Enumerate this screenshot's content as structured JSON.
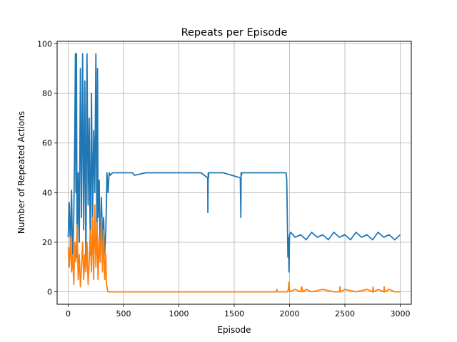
{
  "chart_data": {
    "type": "line",
    "title": "Repeats per Episode",
    "xlabel": "Episode",
    "ylabel": "Number of Repeated Actions",
    "xlim": [
      -100,
      3100
    ],
    "ylim": [
      -5,
      101
    ],
    "xticks": [
      0,
      500,
      1000,
      1500,
      2000,
      2500,
      3000
    ],
    "yticks": [
      0,
      20,
      40,
      60,
      80,
      100
    ],
    "xtick_labels": [
      "0",
      "500",
      "1000",
      "1500",
      "2000",
      "2500",
      "3000"
    ],
    "ytick_labels": [
      "0",
      "20",
      "40",
      "60",
      "80",
      "100"
    ],
    "grid": true,
    "legend": false,
    "series": [
      {
        "color": "#1f77b4",
        "x": [
          0,
          10,
          20,
          30,
          40,
          50,
          60,
          65,
          70,
          75,
          80,
          90,
          100,
          110,
          120,
          130,
          140,
          150,
          160,
          170,
          180,
          190,
          200,
          210,
          220,
          230,
          240,
          250,
          260,
          265,
          270,
          280,
          290,
          300,
          310,
          320,
          330,
          340,
          345,
          350,
          360,
          370,
          380,
          400,
          500,
          580,
          600,
          700,
          800,
          900,
          1000,
          1100,
          1200,
          1260,
          1262,
          1265,
          1268,
          1270,
          1400,
          1555,
          1560,
          1562,
          1565,
          1570,
          1700,
          1800,
          1900,
          1970,
          1975,
          1980,
          1985,
          1990,
          1995,
          2000,
          2010,
          2050,
          2100,
          2150,
          2200,
          2250,
          2300,
          2350,
          2400,
          2450,
          2500,
          2550,
          2600,
          2650,
          2700,
          2750,
          2800,
          2850,
          2900,
          2950,
          3000
        ],
        "y": [
          22,
          36,
          18,
          41,
          12,
          30,
          66,
          96,
          40,
          96,
          14,
          48,
          20,
          90,
          30,
          96,
          25,
          85,
          10,
          96,
          35,
          70,
          15,
          80,
          30,
          65,
          40,
          96,
          15,
          90,
          30,
          45,
          12,
          38,
          20,
          30,
          15,
          25,
          35,
          48,
          40,
          48,
          47,
          48,
          48,
          48,
          47,
          48,
          48,
          48,
          48,
          48,
          48,
          46,
          32,
          48,
          46,
          48,
          48,
          46,
          30,
          48,
          47,
          48,
          48,
          48,
          48,
          48,
          45,
          30,
          14,
          22,
          8,
          23,
          24,
          22,
          23,
          21,
          24,
          22,
          23,
          21,
          24,
          22,
          23,
          21,
          24,
          22,
          23,
          21,
          24,
          22,
          23,
          21,
          23
        ]
      },
      {
        "color": "#ff7f0e",
        "x": [
          0,
          10,
          20,
          30,
          40,
          50,
          60,
          70,
          80,
          90,
          100,
          110,
          120,
          130,
          140,
          150,
          160,
          170,
          180,
          190,
          200,
          210,
          220,
          230,
          240,
          250,
          260,
          270,
          280,
          290,
          300,
          310,
          320,
          330,
          340,
          345,
          360,
          400,
          500,
          1000,
          1500,
          1880,
          1885,
          1890,
          1950,
          1980,
          1990,
          1995,
          2000,
          2050,
          2100,
          2110,
          2120,
          2150,
          2200,
          2300,
          2400,
          2450,
          2455,
          2460,
          2500,
          2600,
          2700,
          2750,
          2755,
          2760,
          2800,
          2850,
          2855,
          2860,
          2900,
          2950,
          3000
        ],
        "y": [
          18,
          10,
          22,
          8,
          15,
          3,
          20,
          12,
          27,
          5,
          15,
          2,
          10,
          20,
          5,
          15,
          8,
          20,
          3,
          12,
          25,
          8,
          30,
          5,
          35,
          10,
          28,
          5,
          22,
          12,
          30,
          8,
          25,
          5,
          15,
          3,
          0,
          0,
          0,
          0,
          0,
          0,
          1,
          0,
          0,
          0,
          1,
          4,
          0,
          1,
          0,
          2,
          0,
          1,
          0,
          1,
          0,
          0,
          2,
          0,
          1,
          0,
          1,
          0,
          2,
          0,
          1,
          0,
          2,
          0,
          1,
          0,
          0
        ]
      }
    ]
  }
}
